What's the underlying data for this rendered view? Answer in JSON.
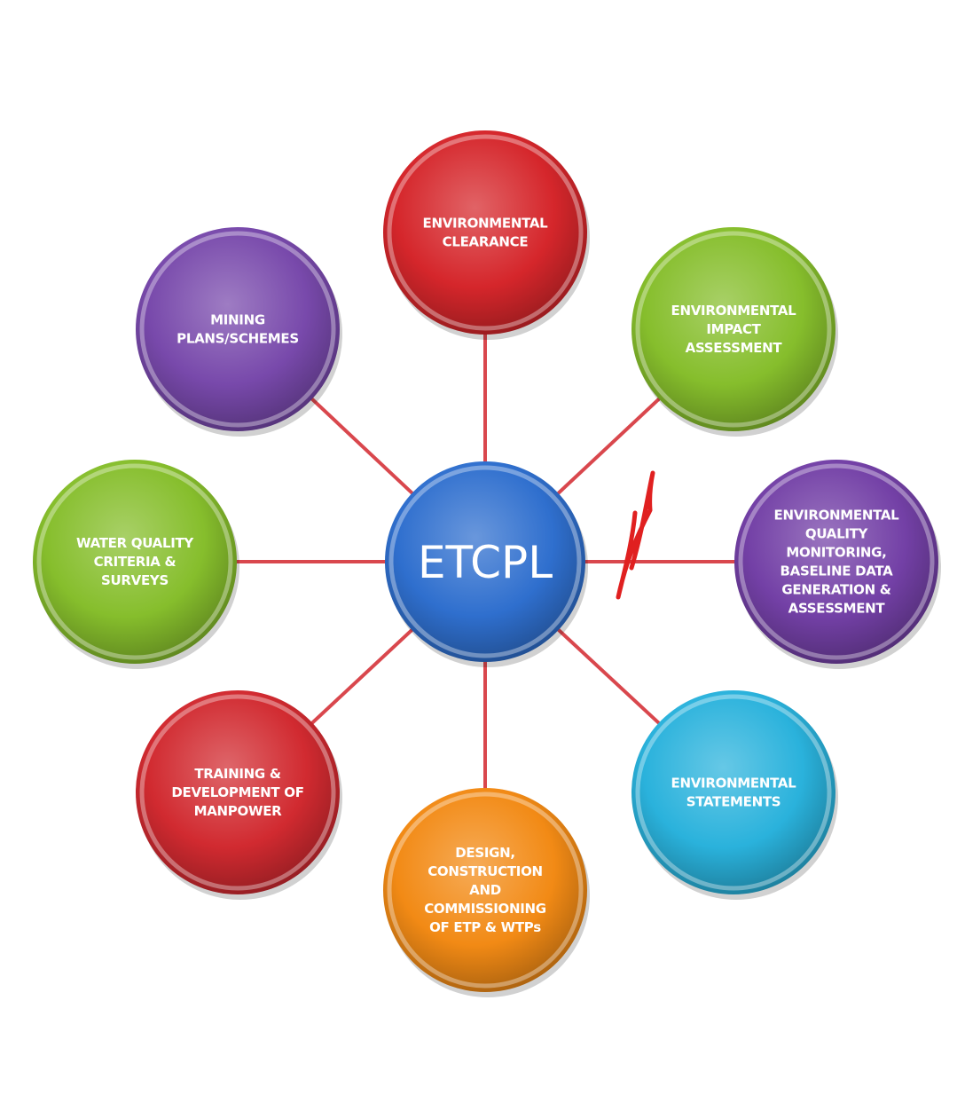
{
  "center": {
    "label": "ETCPL",
    "color": "#2f6fce"
  },
  "nodes": [
    {
      "id": "environmental-clearance",
      "lines": [
        "ENVIRONMENTAL",
        "CLEARANCE"
      ],
      "color": "#d5262b"
    },
    {
      "id": "environmental-impact-assessment",
      "lines": [
        "ENVIRONMENTAL",
        "IMPACT",
        "ASSESSMENT"
      ],
      "color": "#86be2c"
    },
    {
      "id": "environmental-quality-monitoring",
      "lines": [
        "ENVIRONMENTAL",
        "QUALITY",
        "MONITORING,",
        "BASELINE DATA",
        "GENERATION &",
        "ASSESSMENT"
      ],
      "color": "#7340a6"
    },
    {
      "id": "environmental-statements",
      "lines": [
        "ENVIRONMENTAL",
        "STATEMENTS"
      ],
      "color": "#2ab2dc"
    },
    {
      "id": "design-construction",
      "lines": [
        "DESIGN,",
        "CONSTRUCTION",
        "AND",
        "COMMISSIONING",
        "OF ETP & WTPs"
      ],
      "color": "#f28a15"
    },
    {
      "id": "training-development",
      "lines": [
        "TRAINING &",
        "DEVELOPMENT OF",
        "MANPOWER"
      ],
      "color": "#d12a30"
    },
    {
      "id": "water-quality-criteria",
      "lines": [
        "WATER QUALITY",
        "CRITERIA &",
        "SURVEYS"
      ],
      "color": "#86be2c"
    },
    {
      "id": "mining-plans",
      "lines": [
        "MINING",
        "PLANS/SCHEMES"
      ],
      "color": "#7849ab"
    }
  ],
  "colors": {
    "spoke": "#d9474d",
    "handwritten_mark": "#e02020"
  }
}
